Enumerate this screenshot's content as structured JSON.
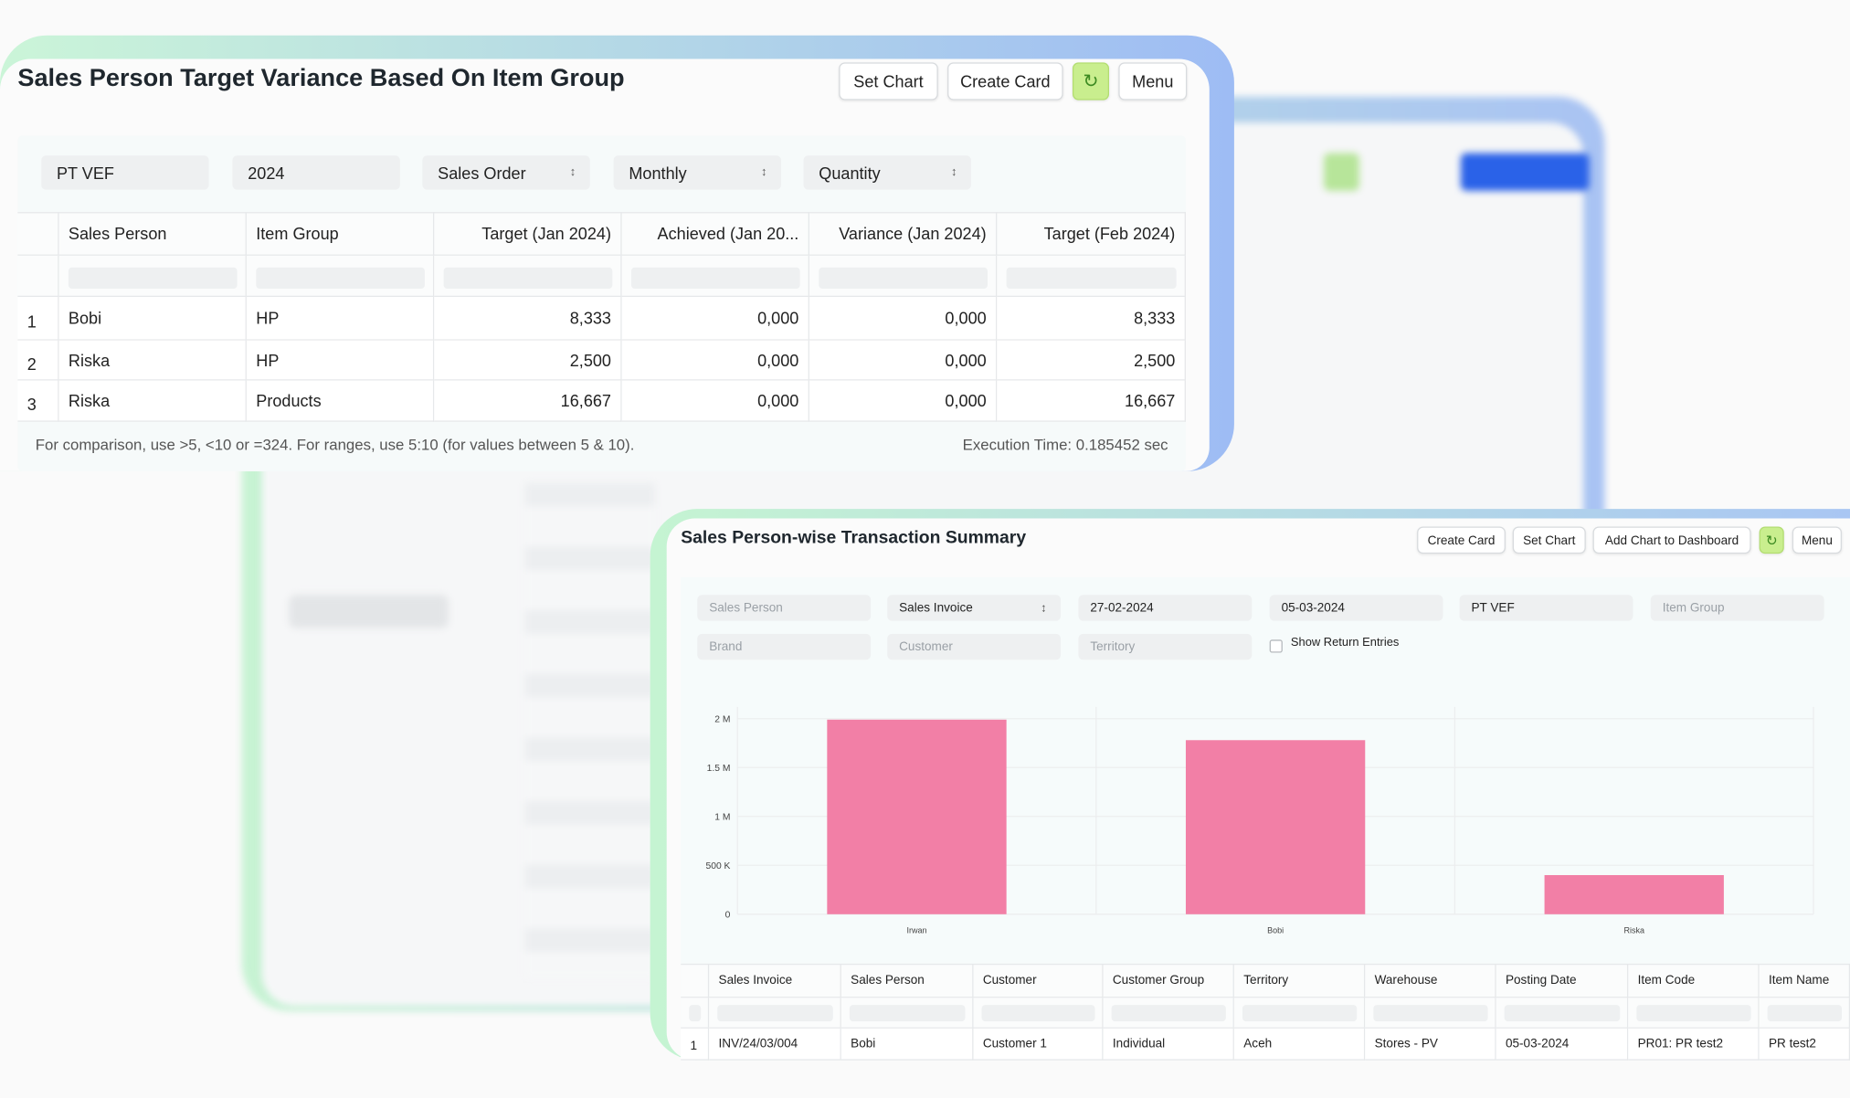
{
  "report_card": {
    "title": "Sales Person Target Variance Based On Item Group",
    "buttons": [
      "Set Chart",
      "Create Card",
      "Menu"
    ],
    "filters": [
      "PT VEF",
      "2024",
      "Sales Order",
      "Monthly",
      "Quantity"
    ],
    "table": {
      "columns": [
        "Sales Person",
        "Item Group",
        "Target (Jan 2024)",
        "Achieved (Jan 20...",
        "Variance (Jan 2024)",
        "Target (Feb 2024)"
      ],
      "rows": [
        [
          "1",
          "Bobi",
          "HP",
          "8,333",
          "0,000",
          "0,000",
          "8,333"
        ],
        [
          "2",
          "Riska",
          "HP",
          "2,500",
          "0,000",
          "0,000",
          "2,500"
        ],
        [
          "3",
          "Riska",
          "Products",
          "16,667",
          "0,000",
          "0,000",
          "16,667"
        ]
      ]
    },
    "footer": {
      "hint": "For comparison, use >5, <10 or =324. For ranges, use 5:10 (for values between 5 & 10).",
      "execution_time": "Execution Time: 0.185452 sec"
    }
  },
  "summary_card": {
    "title": "Sales Person-wise Transaction Summary",
    "buttons": [
      "Create Card",
      "Set Chart",
      "Add Chart to Dashboard",
      "Menu"
    ],
    "filters": [
      "Sales Person",
      "Sales Invoice",
      "27-02-2024",
      "05-03-2024",
      "PT VEF",
      "Item Group",
      "Brand",
      "Customer",
      "Territory"
    ],
    "checkbox_label": "Show Return Entries",
    "chart_data": {
      "type": "bar",
      "categories": [
        "Irwan",
        "Bobi",
        "Riska"
      ],
      "values": [
        1990000,
        1780000,
        400000
      ],
      "color": "#f27fa6",
      "ylim": [
        0,
        2000000
      ],
      "yticks": [
        0,
        {
          "value": 500000,
          "label": "500 K"
        },
        {
          "value": 1000000,
          "label": "1 M"
        },
        {
          "value": 1500000,
          "label": "1.5 M"
        },
        {
          "value": 2000000,
          "label": "2 M"
        }
      ],
      "grid": true
    },
    "table": {
      "columns": [
        "Sales Invoice",
        "Sales Person",
        "Customer",
        "Customer Group",
        "Territory",
        "Warehouse",
        "Posting Date",
        "Item Code",
        "Item Name"
      ],
      "rows": [
        [
          "1",
          "INV/24/03/004",
          "Bobi",
          "Customer 1",
          "Individual",
          "Aceh",
          "Stores - PV",
          "05-03-2024",
          "PR01: PR test2",
          "PR test2"
        ]
      ]
    }
  }
}
